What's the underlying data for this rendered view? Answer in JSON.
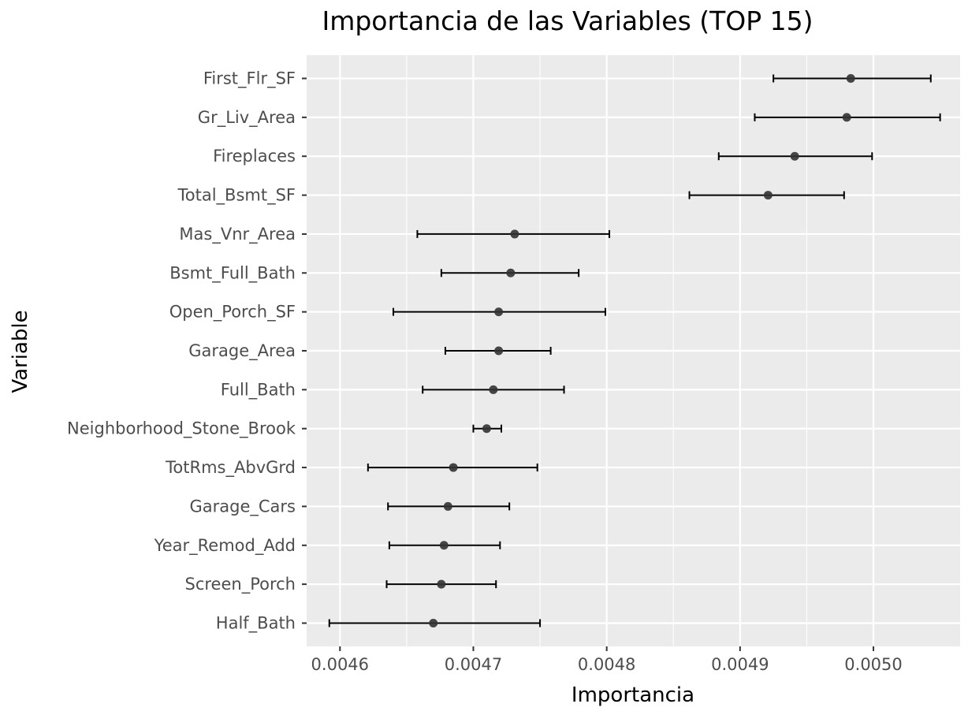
{
  "chart_data": {
    "type": "scatter",
    "title": "Importancia de las Variables (TOP 15)",
    "xlabel": "Importancia",
    "ylabel": "Variable",
    "xlim": [
      0.004575,
      0.005065
    ],
    "xticks": [
      0.0046,
      0.0047,
      0.0048,
      0.0049,
      0.005
    ],
    "xtick_labels": [
      "0.0046",
      "0.0047",
      "0.0048",
      "0.0049",
      "0.0050"
    ],
    "grid": true,
    "colors": {
      "panel": "#ebebeb",
      "grid": "#ffffff",
      "point": "#333333",
      "errorbar": "#000000",
      "tick_text": "#4d4d4d"
    },
    "categories": [
      "First_Flr_SF",
      "Gr_Liv_Area",
      "Fireplaces",
      "Total_Bsmt_SF",
      "Mas_Vnr_Area",
      "Bsmt_Full_Bath",
      "Open_Porch_SF",
      "Garage_Area",
      "Full_Bath",
      "Neighborhood_Stone_Brook",
      "TotRms_AbvGrd",
      "Garage_Cars",
      "Year_Remod_Add",
      "Screen_Porch",
      "Half_Bath"
    ],
    "values": [
      0.004983,
      0.00498,
      0.004941,
      0.004921,
      0.004731,
      0.004728,
      0.004719,
      0.004719,
      0.004715,
      0.00471,
      0.004685,
      0.004681,
      0.004678,
      0.004676,
      0.00467
    ],
    "lower": [
      0.004925,
      0.004911,
      0.004884,
      0.004862,
      0.004658,
      0.004676,
      0.00464,
      0.004679,
      0.004662,
      0.0047,
      0.004621,
      0.004636,
      0.004637,
      0.004635,
      0.004592
    ],
    "upper": [
      0.005043,
      0.00505,
      0.004999,
      0.004978,
      0.004802,
      0.004779,
      0.004799,
      0.004758,
      0.004768,
      0.004721,
      0.004748,
      0.004727,
      0.00472,
      0.004717,
      0.00475
    ]
  }
}
